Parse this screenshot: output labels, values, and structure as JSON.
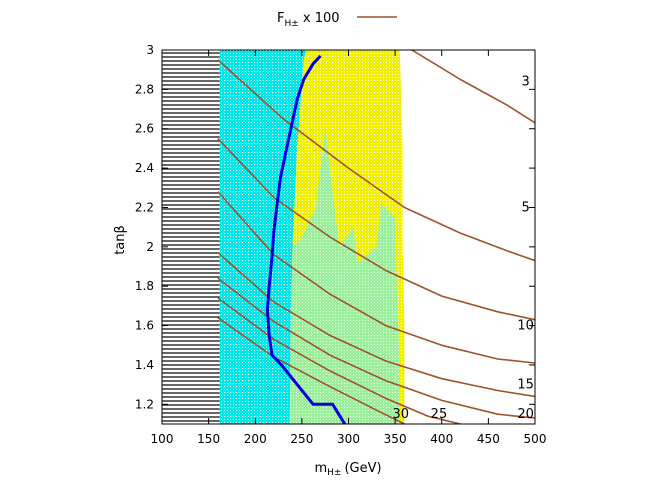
{
  "chart_data": {
    "type": "contour",
    "xlabel_main": "m",
    "xlabel_sub": "H±",
    "xlabel_unit": "(GeV)",
    "ylabel": "tanβ",
    "xlim": [
      100,
      500
    ],
    "ylim": [
      1.1,
      3.0
    ],
    "x_ticks": [
      100,
      150,
      200,
      250,
      300,
      350,
      400,
      450,
      500
    ],
    "y_ticks": [
      1.2,
      1.4,
      1.6,
      1.8,
      2.0,
      2.2,
      2.4,
      2.6,
      2.8,
      3.0
    ],
    "y_tick_labels": [
      "1.2",
      "1.4",
      "1.6",
      "1.8",
      "2",
      "2.2",
      "2.4",
      "2.6",
      "2.8",
      "3"
    ],
    "legend": {
      "main": "F",
      "sub": "H±",
      "suffix": " x 100",
      "color": "#a0522d",
      "placement": "top"
    },
    "contour_color": "#a0522d",
    "contours": [
      {
        "label": "3",
        "points": [
          [
            368,
            3.0
          ],
          [
            420,
            2.85
          ],
          [
            470,
            2.72
          ],
          [
            500,
            2.63
          ]
        ]
      },
      {
        "label": "5",
        "points": [
          [
            160,
            2.95
          ],
          [
            230,
            2.65
          ],
          [
            300,
            2.4
          ],
          [
            360,
            2.2
          ],
          [
            420,
            2.07
          ],
          [
            470,
            1.98
          ],
          [
            500,
            1.93
          ]
        ]
      },
      {
        "label": "",
        "points": [
          [
            160,
            2.55
          ],
          [
            220,
            2.25
          ],
          [
            280,
            2.05
          ],
          [
            340,
            1.88
          ],
          [
            400,
            1.75
          ],
          [
            460,
            1.67
          ],
          [
            500,
            1.63
          ]
        ]
      },
      {
        "label": "10",
        "points": [
          [
            160,
            2.28
          ],
          [
            220,
            1.96
          ],
          [
            280,
            1.76
          ],
          [
            340,
            1.6
          ],
          [
            400,
            1.5
          ],
          [
            460,
            1.43
          ],
          [
            500,
            1.41
          ]
        ]
      },
      {
        "label": "15",
        "points": [
          [
            160,
            1.97
          ],
          [
            220,
            1.72
          ],
          [
            280,
            1.55
          ],
          [
            340,
            1.42
          ],
          [
            400,
            1.33
          ],
          [
            460,
            1.27
          ],
          [
            500,
            1.24
          ]
        ]
      },
      {
        "label": "20",
        "points": [
          [
            160,
            1.84
          ],
          [
            220,
            1.62
          ],
          [
            280,
            1.45
          ],
          [
            340,
            1.32
          ],
          [
            400,
            1.22
          ],
          [
            460,
            1.15
          ],
          [
            500,
            1.13
          ]
        ]
      },
      {
        "label": "25",
        "points": [
          [
            160,
            1.74
          ],
          [
            220,
            1.53
          ],
          [
            280,
            1.37
          ],
          [
            340,
            1.23
          ],
          [
            385,
            1.14
          ],
          [
            420,
            1.1
          ]
        ]
      },
      {
        "label": "30",
        "points": [
          [
            160,
            1.64
          ],
          [
            220,
            1.44
          ],
          [
            280,
            1.29
          ],
          [
            330,
            1.17
          ],
          [
            360,
            1.1
          ]
        ]
      }
    ],
    "contour_label_positions": [
      {
        "label": "3",
        "x": 490,
        "y": 2.84
      },
      {
        "label": "5",
        "x": 490,
        "y": 2.2
      },
      {
        "label": "10",
        "x": 490,
        "y": 1.6
      },
      {
        "label": "15",
        "x": 490,
        "y": 1.3
      },
      {
        "label": "20",
        "x": 490,
        "y": 1.15
      },
      {
        "label": "25",
        "x": 397,
        "y": 1.15
      },
      {
        "label": "30",
        "x": 356,
        "y": 1.15
      }
    ],
    "regions": [
      {
        "name": "black hatched",
        "color": "#000000",
        "polygon": [
          [
            100,
            1.1
          ],
          [
            162,
            1.1
          ],
          [
            162,
            3.0
          ],
          [
            100,
            3.0
          ]
        ]
      },
      {
        "name": "cyan",
        "color": "#00e8e8",
        "polygon": [
          [
            162,
            1.1
          ],
          [
            237,
            1.1
          ],
          [
            238,
            1.5
          ],
          [
            240,
            2.0
          ],
          [
            245,
            2.5
          ],
          [
            252,
            2.95
          ],
          [
            255,
            3.0
          ],
          [
            162,
            3.0
          ]
        ]
      },
      {
        "name": "yellow",
        "color": "#f0f000",
        "polygon": [
          [
            252,
            2.95
          ],
          [
            255,
            3.0
          ],
          [
            355,
            3.0
          ],
          [
            358,
            2.5
          ],
          [
            358,
            2.0
          ],
          [
            360,
            1.6
          ],
          [
            360,
            1.1
          ],
          [
            300,
            1.1
          ],
          [
            237,
            1.1
          ],
          [
            238,
            1.5
          ],
          [
            240,
            2.0
          ],
          [
            245,
            2.5
          ]
        ]
      },
      {
        "name": "light green",
        "color": "#9cf09c",
        "polygon": [
          [
            237,
            1.1
          ],
          [
            238,
            1.6
          ],
          [
            240,
            2.0
          ],
          [
            250,
            2.05
          ],
          [
            265,
            2.2
          ],
          [
            275,
            2.6
          ],
          [
            290,
            2.0
          ],
          [
            305,
            2.1
          ],
          [
            310,
            1.92
          ],
          [
            330,
            2.0
          ],
          [
            335,
            2.22
          ],
          [
            350,
            2.15
          ],
          [
            352,
            1.75
          ],
          [
            355,
            1.4
          ],
          [
            354,
            1.1
          ]
        ]
      }
    ],
    "blue_line": {
      "color": "#0000dd",
      "points": [
        [
          296,
          1.1
        ],
        [
          283,
          1.2
        ],
        [
          262,
          1.2
        ],
        [
          245,
          1.3
        ],
        [
          228,
          1.4
        ],
        [
          218,
          1.45
        ],
        [
          215,
          1.55
        ],
        [
          213,
          1.68
        ],
        [
          215,
          1.8
        ],
        [
          218,
          1.95
        ],
        [
          220,
          2.08
        ],
        [
          223,
          2.2
        ],
        [
          227,
          2.35
        ],
        [
          235,
          2.53
        ],
        [
          245,
          2.75
        ],
        [
          252,
          2.85
        ],
        [
          262,
          2.93
        ],
        [
          270,
          2.97
        ]
      ]
    }
  }
}
